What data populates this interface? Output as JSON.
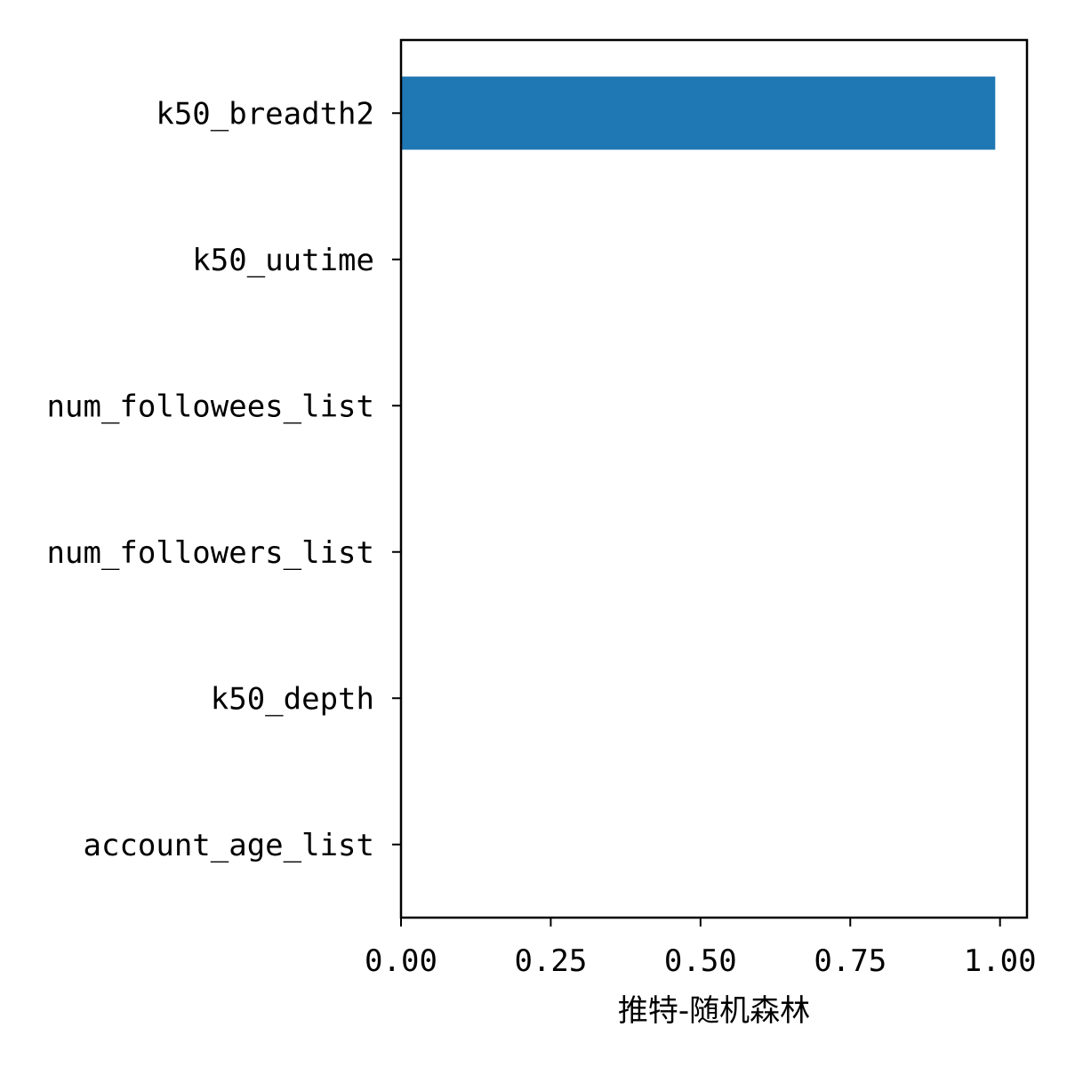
{
  "chart_data": {
    "type": "bar",
    "orientation": "horizontal",
    "categories": [
      "k50_breadth2",
      "k50_uutime",
      "num_followees_list",
      "num_followers_list",
      "k50_depth",
      "account_age_list"
    ],
    "values": [
      0.992,
      0.0,
      0.0,
      0.0,
      0.0,
      0.0
    ],
    "title": "",
    "xlabel": "推特-随机森林",
    "ylabel": "",
    "xlim": [
      0,
      1.045
    ],
    "xticks": [
      0.0,
      0.25,
      0.5,
      0.75,
      1.0
    ],
    "xtick_labels": [
      "0.00",
      "0.25",
      "0.50",
      "0.75",
      "1.00"
    ],
    "grid": false,
    "legend": "none",
    "bar_color": "#1f77b4"
  }
}
